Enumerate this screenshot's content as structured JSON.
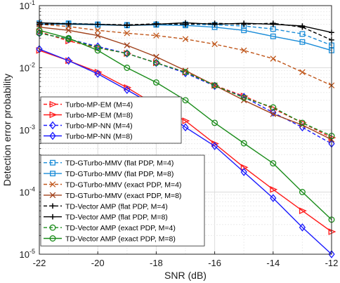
{
  "chart_data": {
    "type": "line",
    "title": "",
    "xlabel": "SNR (dB)",
    "ylabel": "Detection error probability",
    "xlim": [
      -22,
      -12
    ],
    "ylim": [
      1e-05,
      0.1
    ],
    "yscale": "log",
    "grid": true,
    "x_ticks": [
      "-22",
      "-20",
      "-18",
      "-16",
      "-14",
      "-12"
    ],
    "y_ticks": [
      {
        "base": "10",
        "exp": "-5"
      },
      {
        "base": "10",
        "exp": "-4"
      },
      {
        "base": "10",
        "exp": "-3"
      },
      {
        "base": "10",
        "exp": "-2"
      },
      {
        "base": "10",
        "exp": "-1"
      }
    ],
    "legends": [
      {
        "position": "middle-left",
        "entries": [
          0,
          1,
          2,
          3
        ]
      },
      {
        "position": "bottom-left",
        "entries": [
          4,
          5,
          6,
          7,
          8,
          9,
          10,
          11
        ]
      }
    ],
    "series": [
      {
        "name": "Turbo-MP-EM (M=4)",
        "color": "#ff1a1a",
        "dash": "dashed",
        "marker": "triangle-right",
        "x": [
          -22,
          -21,
          -20,
          -19,
          -18,
          -17,
          -16,
          -15,
          -14,
          -13,
          -12
        ],
        "y": [
          0.038,
          0.027,
          0.021,
          0.017,
          0.012,
          0.0085,
          0.0052,
          0.0035,
          0.0022,
          0.0013,
          0.00075
        ]
      },
      {
        "name": "Turbo-MP-EM (M=8)",
        "color": "#ff1a1a",
        "dash": "solid",
        "marker": "triangle-right",
        "x": [
          -22,
          -21,
          -20,
          -19,
          -18,
          -17,
          -16,
          -15,
          -14,
          -13,
          -12
        ],
        "y": [
          0.019,
          0.013,
          0.0085,
          0.0048,
          0.0025,
          0.0014,
          0.0006,
          0.00025,
          0.00011,
          5e-05,
          2.3e-05
        ]
      },
      {
        "name": "Turbo-MP-NN (M=4)",
        "color": "#1a1aff",
        "dash": "dashed",
        "marker": "diamond",
        "x": [
          -22,
          -21,
          -20,
          -19,
          -18,
          -17,
          -16,
          -15,
          -14,
          -13,
          -12
        ],
        "y": [
          0.036,
          0.029,
          0.022,
          0.017,
          0.012,
          0.0082,
          0.0051,
          0.0034,
          0.0019,
          0.0011,
          0.0006
        ]
      },
      {
        "name": "Turbo-MP-NN (M=8)",
        "color": "#1a1aff",
        "dash": "solid",
        "marker": "diamond",
        "x": [
          -22,
          -21,
          -20,
          -19,
          -18,
          -17,
          -16,
          -15,
          -14,
          -13,
          -12
        ],
        "y": [
          0.02,
          0.013,
          0.008,
          0.0044,
          0.0024,
          0.0011,
          0.00055,
          0.00021,
          8e-05,
          2.7e-05,
          1e-05
        ]
      },
      {
        "name": "TD-GTurbo-MMV (flat PDP, M=4)",
        "color": "#1a8cd8",
        "dash": "dashed",
        "marker": "square",
        "x": [
          -22,
          -21,
          -20,
          -19,
          -18,
          -17,
          -16,
          -15,
          -14,
          -13,
          -12
        ],
        "y": [
          0.052,
          0.052,
          0.05,
          0.049,
          0.05,
          0.05,
          0.049,
          0.047,
          0.042,
          0.035,
          0.023
        ]
      },
      {
        "name": "TD-GTurbo-MMV (flat PDP, M=8)",
        "color": "#1a8cd8",
        "dash": "solid",
        "marker": "square",
        "x": [
          -22,
          -21,
          -20,
          -19,
          -18,
          -17,
          -16,
          -15,
          -14,
          -13,
          -12
        ],
        "y": [
          0.05,
          0.05,
          0.049,
          0.048,
          0.049,
          0.048,
          0.045,
          0.04,
          0.032,
          0.026,
          0.019
        ]
      },
      {
        "name": "TD-GTurbo-MMV (exact PDP, M=4)",
        "color": "#c0561a",
        "dash": "dashed",
        "marker": "x",
        "x": [
          -22,
          -21,
          -20,
          -19,
          -18,
          -17,
          -16,
          -15,
          -14,
          -13,
          -12
        ],
        "y": [
          0.05,
          0.046,
          0.04,
          0.036,
          0.033,
          0.029,
          0.024,
          0.019,
          0.014,
          0.0085,
          0.0052
        ]
      },
      {
        "name": "TD-GTurbo-MMV (exact PDP, M=8)",
        "color": "#a0401a",
        "dash": "solid",
        "marker": "x",
        "x": [
          -22,
          -21,
          -20,
          -19,
          -18,
          -17,
          -16,
          -15,
          -14,
          -13,
          -12
        ],
        "y": [
          0.045,
          0.04,
          0.033,
          0.023,
          0.015,
          0.009,
          0.0052,
          0.003,
          0.0018,
          0.0012,
          0.0007
        ]
      },
      {
        "name": "TD-Vector AMP (flat PDP, M=4)",
        "color": "#000000",
        "dash": "dashed",
        "marker": "plus",
        "x": [
          -22,
          -21,
          -20,
          -19,
          -18,
          -17,
          -16,
          -15,
          -14,
          -13,
          -12
        ],
        "y": [
          0.05,
          0.051,
          0.05,
          0.049,
          0.051,
          0.05,
          0.052,
          0.05,
          0.052,
          0.045,
          0.028
        ]
      },
      {
        "name": "TD-Vector AMP (flat PDP, M=8)",
        "color": "#000000",
        "dash": "solid",
        "marker": "plus",
        "x": [
          -22,
          -21,
          -20,
          -19,
          -18,
          -17,
          -16,
          -15,
          -14,
          -13,
          -12
        ],
        "y": [
          0.053,
          0.051,
          0.05,
          0.048,
          0.05,
          0.053,
          0.05,
          0.052,
          0.05,
          0.047,
          0.037
        ]
      },
      {
        "name": "TD-Vector AMP (exact PDP, M=4)",
        "color": "#1a8c1a",
        "dash": "dashed",
        "marker": "circle",
        "x": [
          -22,
          -21,
          -20,
          -19,
          -18,
          -17,
          -16,
          -15,
          -14,
          -13,
          -12
        ],
        "y": [
          0.036,
          0.029,
          0.021,
          0.017,
          0.012,
          0.0085,
          0.0052,
          0.0033,
          0.0023,
          0.0013,
          0.0008
        ]
      },
      {
        "name": "TD-Vector AMP (exact PDP, M=8)",
        "color": "#1a8c1a",
        "dash": "solid",
        "marker": "circle",
        "x": [
          -22,
          -21,
          -20,
          -19,
          -18,
          -17,
          -16,
          -15,
          -14,
          -13,
          -12
        ],
        "y": [
          0.04,
          0.03,
          0.019,
          0.01,
          0.0058,
          0.003,
          0.0013,
          0.00061,
          0.00029,
          0.0001,
          3.6e-05
        ]
      }
    ]
  }
}
